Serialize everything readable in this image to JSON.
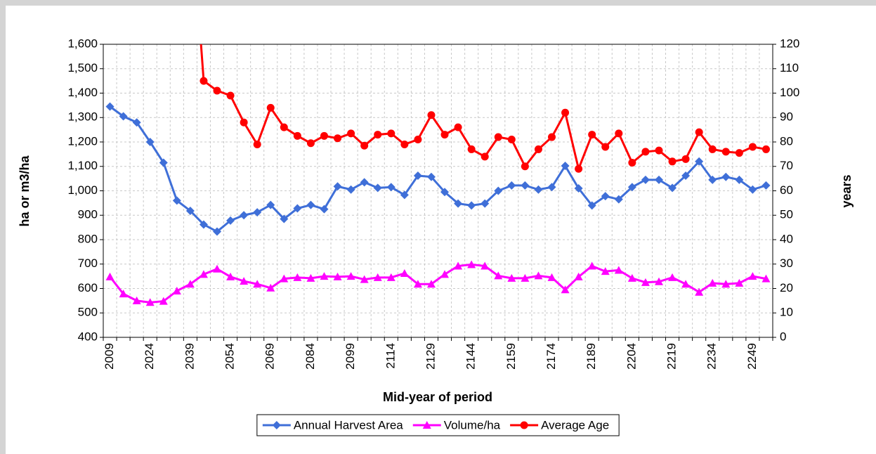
{
  "chart_data": {
    "type": "line",
    "x_label": "Mid-year of period",
    "y_label": "ha or m3/ha",
    "y2_label": "years",
    "categories": [
      "2009",
      null,
      null,
      "2024",
      null,
      null,
      "2039",
      null,
      null,
      "2054",
      null,
      null,
      "2069",
      null,
      null,
      "2084",
      null,
      null,
      "2099",
      null,
      null,
      "2114",
      null,
      null,
      "2129",
      null,
      null,
      "2144",
      null,
      null,
      "2159",
      null,
      null,
      "2174",
      null,
      null,
      "2189",
      null,
      null,
      "2204",
      null,
      null,
      "2219",
      null,
      null,
      "2234",
      null,
      null,
      "2249",
      null
    ],
    "ylim": [
      400,
      1600
    ],
    "yticks": [
      {
        "value": 400,
        "label": "400"
      },
      {
        "value": 500,
        "label": "500"
      },
      {
        "value": 600,
        "label": "600"
      },
      {
        "value": 700,
        "label": "700"
      },
      {
        "value": 800,
        "label": "800"
      },
      {
        "value": 900,
        "label": "900"
      },
      {
        "value": 1000,
        "label": "1,000"
      },
      {
        "value": 1100,
        "label": "1,100"
      },
      {
        "value": 1200,
        "label": "1,200"
      },
      {
        "value": 1300,
        "label": "1,300"
      },
      {
        "value": 1400,
        "label": "1,400"
      },
      {
        "value": 1500,
        "label": "1,500"
      },
      {
        "value": 1600,
        "label": "1,600"
      }
    ],
    "y2lim": [
      0,
      120
    ],
    "y2ticks": [
      0,
      10,
      20,
      30,
      40,
      50,
      60,
      70,
      80,
      90,
      100,
      110,
      120
    ],
    "grid": true,
    "legend": "bottom",
    "series": [
      {
        "name": "Annual Harvest Area",
        "color": "#3f6fd8",
        "marker": "diamond",
        "values": [
          1345,
          1305,
          1280,
          1200,
          1115,
          960,
          918,
          862,
          833,
          878,
          900,
          912,
          942,
          885,
          928,
          942,
          925,
          1018,
          1005,
          1035,
          1012,
          1015,
          983,
          1062,
          1057,
          995,
          948,
          940,
          948,
          1000,
          1022,
          1022,
          1005,
          1015,
          1102,
          1010,
          940,
          978,
          965,
          1015,
          1045,
          1045,
          1012,
          1062,
          1120,
          1045,
          1057,
          1045,
          1005,
          1022
        ]
      },
      {
        "name": "Volume/ha",
        "color": "#ff00ff",
        "marker": "triangle",
        "values": [
          648,
          578,
          550,
          543,
          548,
          590,
          618,
          658,
          680,
          648,
          630,
          618,
          602,
          640,
          645,
          642,
          650,
          648,
          650,
          637,
          645,
          645,
          662,
          618,
          618,
          658,
          692,
          698,
          692,
          652,
          642,
          642,
          652,
          645,
          595,
          648,
          692,
          670,
          675,
          642,
          625,
          628,
          645,
          618,
          585,
          622,
          618,
          622,
          650,
          640
        ]
      },
      {
        "name": "Average Age",
        "color": "#ff0000",
        "marker": "circle",
        "axis": "y2",
        "values": [
          null,
          null,
          null,
          null,
          null,
          null,
          180,
          105,
          101,
          99,
          88,
          79,
          94,
          86,
          82.5,
          79.5,
          82.5,
          81.5,
          83.5,
          78.5,
          83,
          83.5,
          79,
          81,
          91,
          83,
          86,
          77,
          74,
          82,
          81,
          70,
          77,
          82,
          92,
          69,
          83,
          78,
          83.5,
          71.5,
          76,
          76.5,
          72,
          73,
          84,
          77,
          76,
          75.5,
          78,
          77
        ]
      }
    ]
  }
}
